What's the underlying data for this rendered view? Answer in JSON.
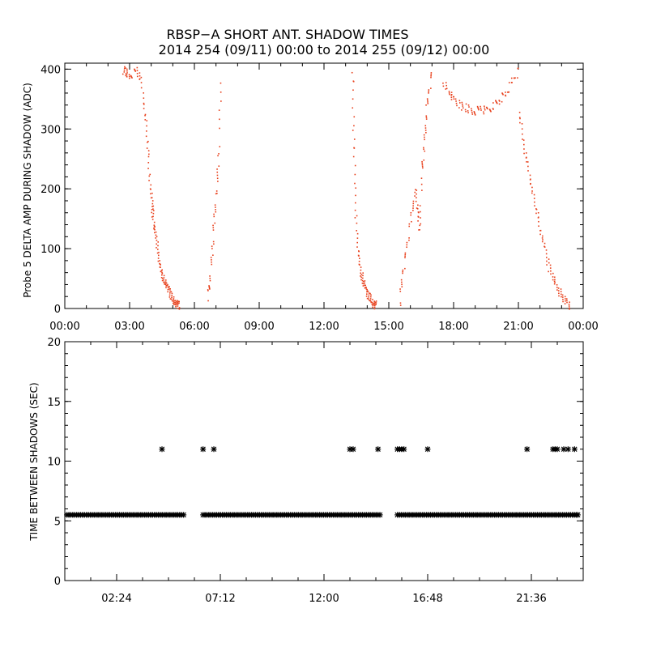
{
  "title_line1": "RBSP−A SHORT ANT. SHADOW TIMES",
  "title_line2": "2014 254 (09/11) 00:00 to 2014 255 (09/12) 00:00",
  "colors": {
    "top_points": "#e8401c",
    "bottom_points": "#000000",
    "axes": "#000000"
  },
  "chart_data": [
    {
      "type": "scatter",
      "ylabel": "Probe 5 DELTA AMP DURING SHADOW (ADC)",
      "xlabel": "",
      "xlim": [
        0,
        24
      ],
      "ylim": [
        0,
        410
      ],
      "x_tick_labels": [
        "00:00",
        "03:00",
        "06:00",
        "09:00",
        "12:00",
        "15:00",
        "18:00",
        "21:00",
        "00:00"
      ],
      "y_tick_labels": [
        "0",
        "100",
        "200",
        "300",
        "400"
      ],
      "grid": false,
      "marker": "dot",
      "series": [
        {
          "x_hours": [
            2.7,
            2.8,
            3.0,
            3.3,
            3.5,
            3.7,
            3.8,
            3.9,
            4.0,
            4.05,
            4.1,
            4.2,
            4.3,
            4.4,
            4.5,
            4.6,
            4.7,
            4.8,
            4.9,
            5.0,
            5.1,
            5.2,
            5.3
          ],
          "y": [
            400,
            395,
            390,
            400,
            380,
            330,
            280,
            220,
            180,
            160,
            140,
            120,
            90,
            70,
            55,
            45,
            40,
            30,
            22,
            15,
            10,
            7,
            5
          ]
        },
        {
          "x_hours": [
            6.6,
            6.7,
            6.8,
            6.9,
            7.0,
            7.1,
            7.2
          ],
          "y": [
            20,
            50,
            100,
            150,
            200,
            260,
            400
          ]
        },
        {
          "x_hours": [
            13.3,
            13.35,
            13.4,
            13.5,
            13.6,
            13.7,
            13.8,
            13.9,
            14.0,
            14.1,
            14.2,
            14.3,
            14.4
          ],
          "y": [
            400,
            300,
            200,
            120,
            80,
            60,
            45,
            35,
            25,
            18,
            12,
            8,
            5
          ]
        },
        {
          "x_hours": [
            15.5,
            15.6,
            15.8,
            16.0,
            16.2,
            16.3,
            16.4,
            16.5,
            16.6,
            16.7,
            16.8,
            17.0
          ],
          "y": [
            10,
            60,
            100,
            150,
            200,
            170,
            130,
            230,
            270,
            320,
            360,
            400
          ]
        },
        {
          "x_hours": [
            17.5,
            17.8,
            18.0,
            18.3,
            18.6,
            18.9,
            19.2,
            19.5,
            19.8,
            20.1,
            20.4,
            20.7,
            21.0
          ],
          "y": [
            380,
            360,
            350,
            340,
            335,
            330,
            335,
            330,
            340,
            350,
            360,
            380,
            400
          ]
        },
        {
          "x_hours": [
            21.0,
            21.2,
            21.4,
            21.6,
            21.8,
            22.0,
            22.2,
            22.4,
            22.6,
            22.8,
            23.0,
            23.2,
            23.4
          ],
          "y": [
            330,
            280,
            240,
            200,
            170,
            130,
            100,
            70,
            50,
            35,
            20,
            10,
            5
          ]
        }
      ]
    },
    {
      "type": "scatter",
      "ylabel": "TIME BETWEEN SHADOWS (SEC)",
      "xlabel": "",
      "xlim": [
        0,
        24
      ],
      "ylim": [
        0,
        20
      ],
      "x_tick_labels": [
        "02:24",
        "07:12",
        "12:00",
        "16:48",
        "21:36"
      ],
      "y_tick_labels": [
        "0",
        "5",
        "10",
        "15",
        "20"
      ],
      "grid": false,
      "marker": "asterisk",
      "baseline_value": 5.5,
      "baseline_segments_hours": [
        [
          0.1,
          5.5
        ],
        [
          6.4,
          14.6
        ],
        [
          15.4,
          23.7
        ]
      ],
      "series": [
        {
          "name": "",
          "x_hours": [
            4.5,
            6.4,
            6.9,
            13.2,
            13.35,
            14.5,
            15.4,
            15.5,
            15.6,
            15.7,
            16.8,
            21.4,
            22.6,
            22.7,
            22.8,
            23.1,
            23.3,
            23.6,
            23.75
          ],
          "y": [
            11,
            11,
            11,
            11,
            11,
            11,
            11,
            11,
            11,
            11,
            11,
            11,
            11,
            11,
            11,
            11,
            11,
            11,
            5.5
          ]
        }
      ]
    }
  ]
}
